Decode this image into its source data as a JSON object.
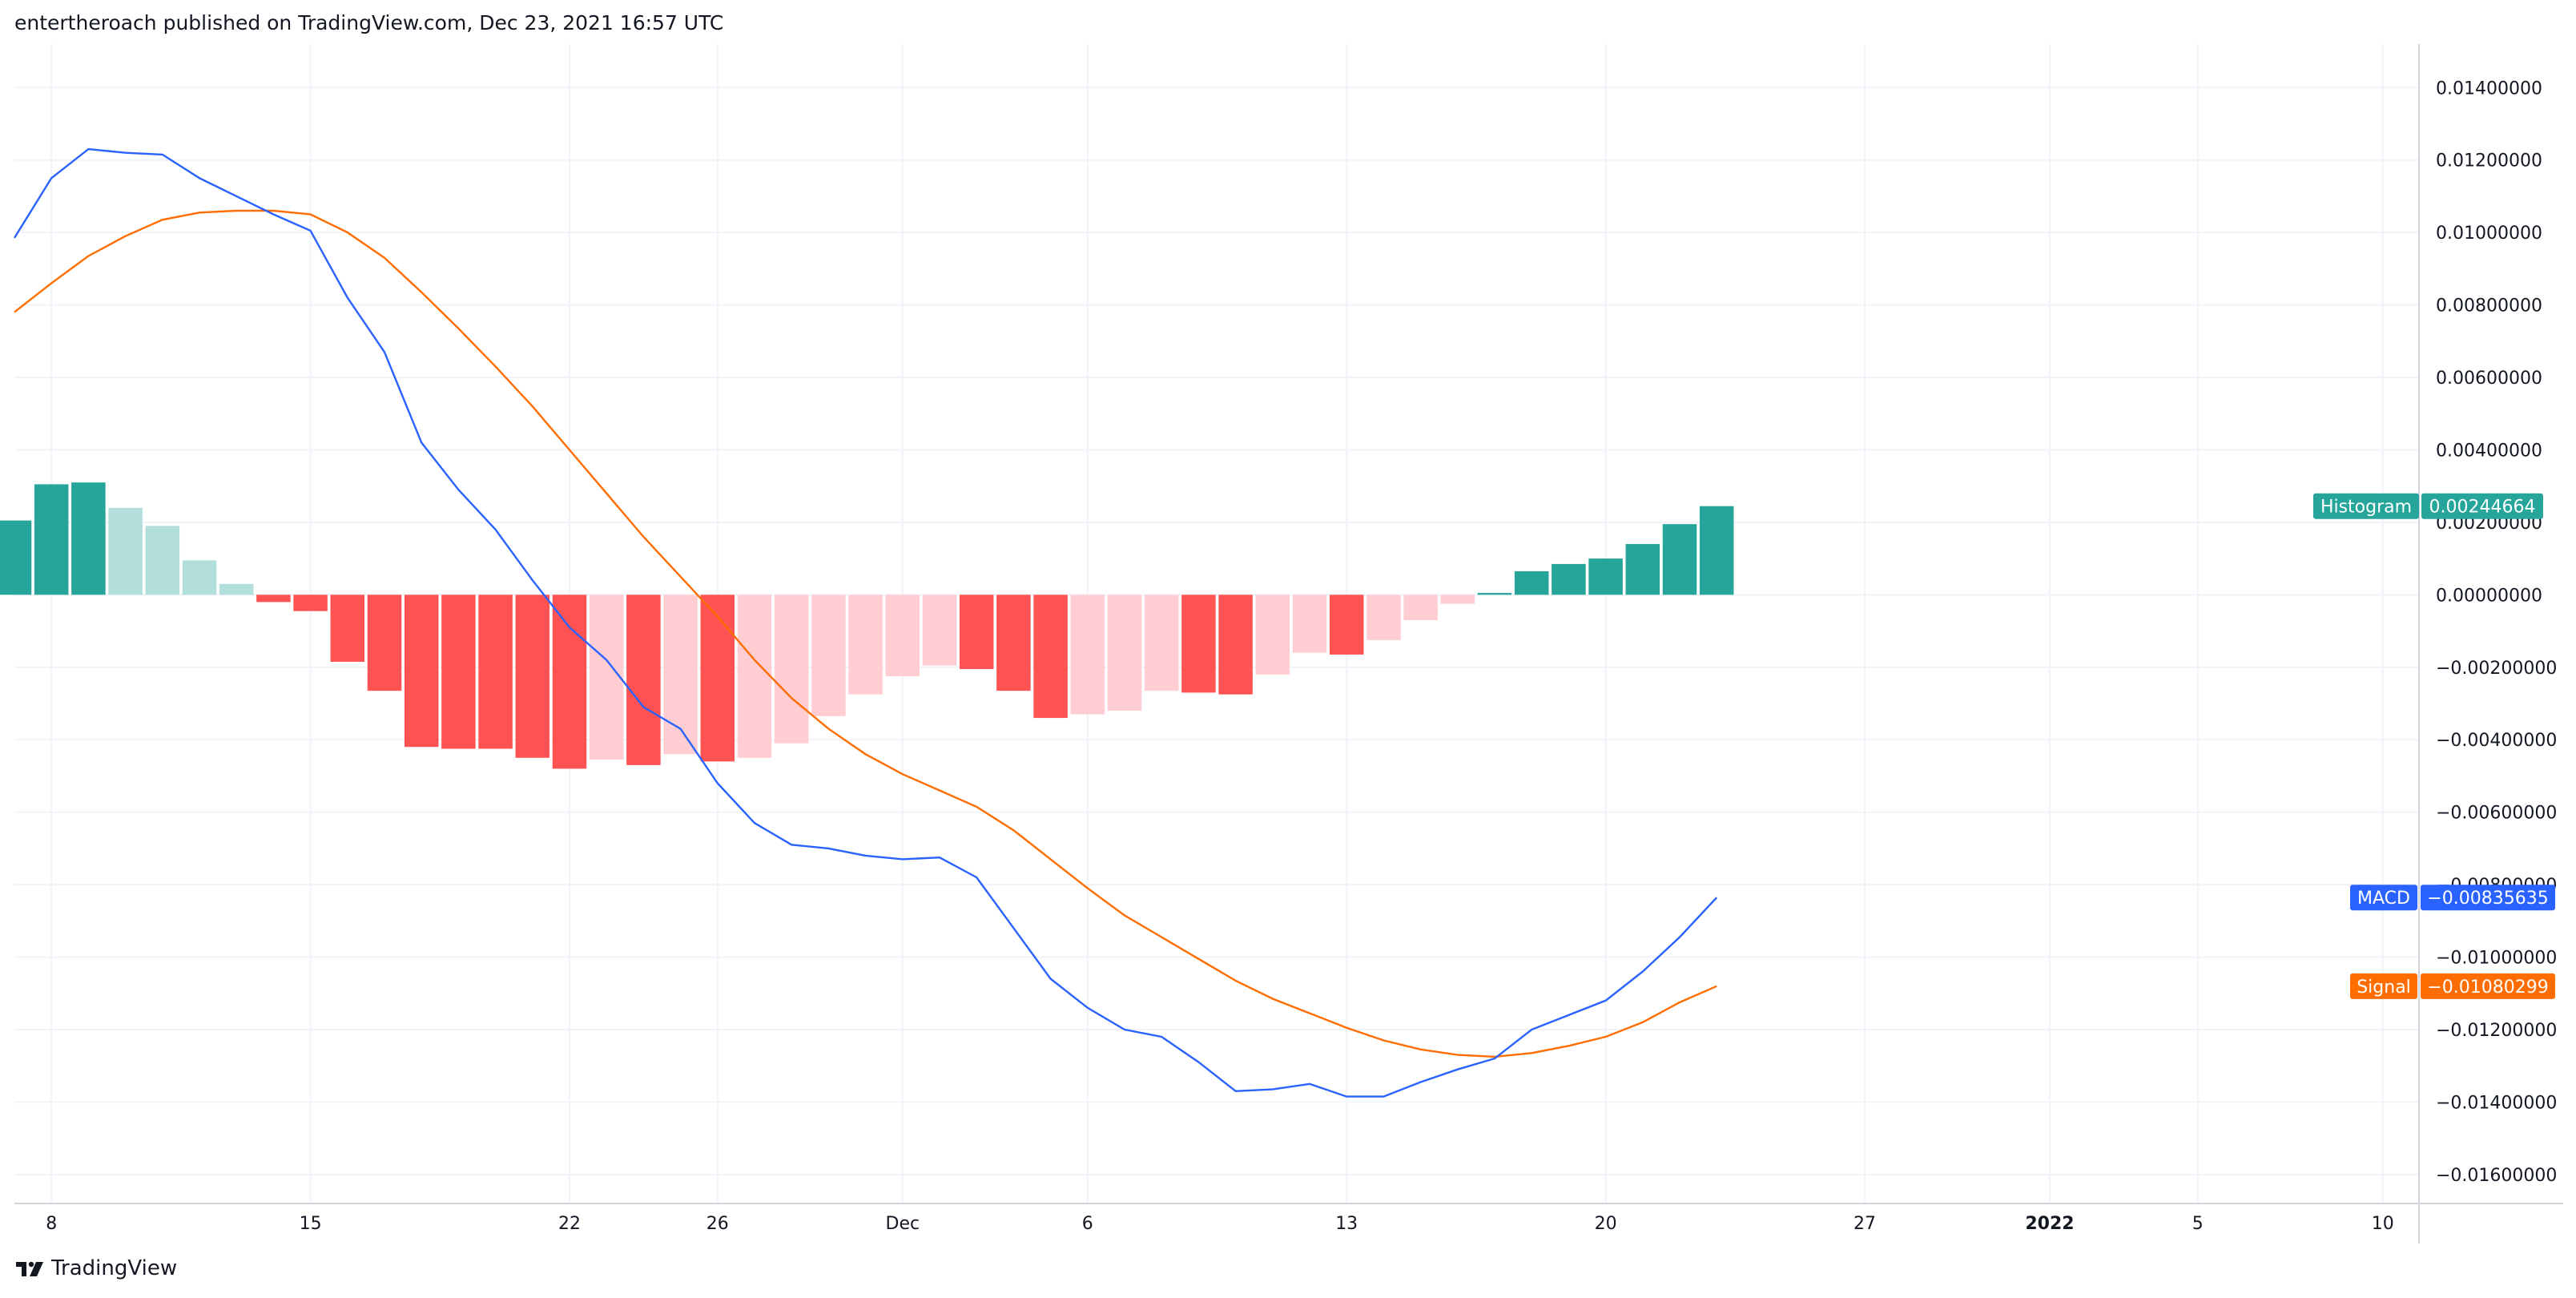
{
  "header": {
    "text": "entertheroach published on TradingView.com, Dec 23, 2021 16:57 UTC"
  },
  "footer": {
    "brand": "TradingView",
    "logo_icon": "tradingview-logo-icon"
  },
  "colors": {
    "macd": "#2962ff",
    "signal": "#ff6d00",
    "hist_pos_grow": "#26a69a",
    "hist_pos_fall": "#b2dfdb",
    "hist_neg_grow": "#ff5252",
    "hist_neg_fall": "#ffcdd2",
    "grid": "#f0f3fa",
    "axis_border": "#d1d4dc"
  },
  "chart_data": {
    "type": "line",
    "ylim": [
      -0.0168,
      0.0152
    ],
    "y_ticks": [
      "0.01400000",
      "0.01200000",
      "0.01000000",
      "0.00800000",
      "0.00600000",
      "0.00400000",
      "0.00200000",
      "0.00000000",
      "−0.00200000",
      "−0.00400000",
      "−0.00600000",
      "−0.00800000",
      "−0.01000000",
      "−0.01200000",
      "−0.01400000",
      "−0.01600000"
    ],
    "y_tick_values": [
      0.014,
      0.012,
      0.01,
      0.008,
      0.006,
      0.004,
      0.002,
      0.0,
      -0.002,
      -0.004,
      -0.006,
      -0.008,
      -0.01,
      -0.012,
      -0.014,
      -0.016
    ],
    "x_ticks": [
      {
        "label": "8",
        "index": 1,
        "bold": false
      },
      {
        "label": "15",
        "index": 8,
        "bold": false
      },
      {
        "label": "22",
        "index": 15,
        "bold": false
      },
      {
        "label": "26",
        "index": 19,
        "bold": false
      },
      {
        "label": "Dec",
        "index": 24,
        "bold": false
      },
      {
        "label": "6",
        "index": 29,
        "bold": false
      },
      {
        "label": "13",
        "index": 36,
        "bold": false
      },
      {
        "label": "20",
        "index": 43,
        "bold": false
      },
      {
        "label": "27",
        "index": 50,
        "bold": false
      },
      {
        "label": "2022",
        "index": 55,
        "bold": true
      },
      {
        "label": "5",
        "index": 59,
        "bold": false
      },
      {
        "label": "10",
        "index": 64,
        "bold": false
      }
    ],
    "total_slots": 65.6,
    "histogram": [
      0.00205,
      0.00305,
      0.0031,
      0.0024,
      0.0019,
      0.00095,
      0.0003,
      -0.0002,
      -0.00045,
      -0.00185,
      -0.00265,
      -0.0042,
      -0.00425,
      -0.00425,
      -0.0045,
      -0.0048,
      -0.00455,
      -0.0047,
      -0.0044,
      -0.0046,
      -0.0045,
      -0.0041,
      -0.00335,
      -0.00275,
      -0.00225,
      -0.00195,
      -0.00205,
      -0.00265,
      -0.0034,
      -0.0033,
      -0.0032,
      -0.00265,
      -0.0027,
      -0.00275,
      -0.0022,
      -0.0016,
      -0.00165,
      -0.00125,
      -0.0007,
      -0.00025,
      5e-05,
      0.00065,
      0.00085,
      0.001,
      0.0014,
      0.00195,
      0.00244664
    ],
    "series": [
      {
        "name": "MACD",
        "values": [
          0.00985,
          0.0115,
          0.0123,
          0.0122,
          0.01215,
          0.0115,
          0.011,
          0.0105,
          0.01005,
          0.0082,
          0.0067,
          0.0042,
          0.0029,
          0.0018,
          0.0004,
          -0.0009,
          -0.0018,
          -0.0031,
          -0.0037,
          -0.0052,
          -0.0063,
          -0.0069,
          -0.007,
          -0.0072,
          -0.0073,
          -0.00725,
          -0.0078,
          -0.0092,
          -0.0106,
          -0.0114,
          -0.012,
          -0.0122,
          -0.0129,
          -0.0137,
          -0.01365,
          -0.0135,
          -0.01385,
          -0.01385,
          -0.01345,
          -0.0131,
          -0.0128,
          -0.012,
          -0.0116,
          -0.0112,
          -0.0104,
          -0.00945,
          -0.00835635
        ]
      },
      {
        "name": "Signal",
        "values": [
          0.0078,
          0.0086,
          0.00935,
          0.0099,
          0.01035,
          0.01055,
          0.0106,
          0.0106,
          0.0105,
          0.01,
          0.0093,
          0.00835,
          0.00735,
          0.0063,
          0.0052,
          0.004,
          0.0028,
          0.0016,
          0.0005,
          -0.0006,
          -0.0018,
          -0.00285,
          -0.0037,
          -0.0044,
          -0.00495,
          -0.0054,
          -0.00585,
          -0.0065,
          -0.0073,
          -0.0081,
          -0.00885,
          -0.00945,
          -0.01005,
          -0.01065,
          -0.01115,
          -0.01155,
          -0.01195,
          -0.0123,
          -0.01255,
          -0.0127,
          -0.01275,
          -0.01265,
          -0.01245,
          -0.0122,
          -0.0118,
          -0.01125,
          -0.01080299
        ]
      }
    ],
    "tags": [
      {
        "label": "Histogram",
        "value": "0.00244664",
        "y": 0.00244664,
        "color": "#26a69a"
      },
      {
        "label": "MACD",
        "value": "−0.00835635",
        "y": -0.00835635,
        "color": "#2962ff"
      },
      {
        "label": "Signal",
        "value": "−0.01080299",
        "y": -0.01080299,
        "color": "#ff6d00"
      }
    ]
  }
}
